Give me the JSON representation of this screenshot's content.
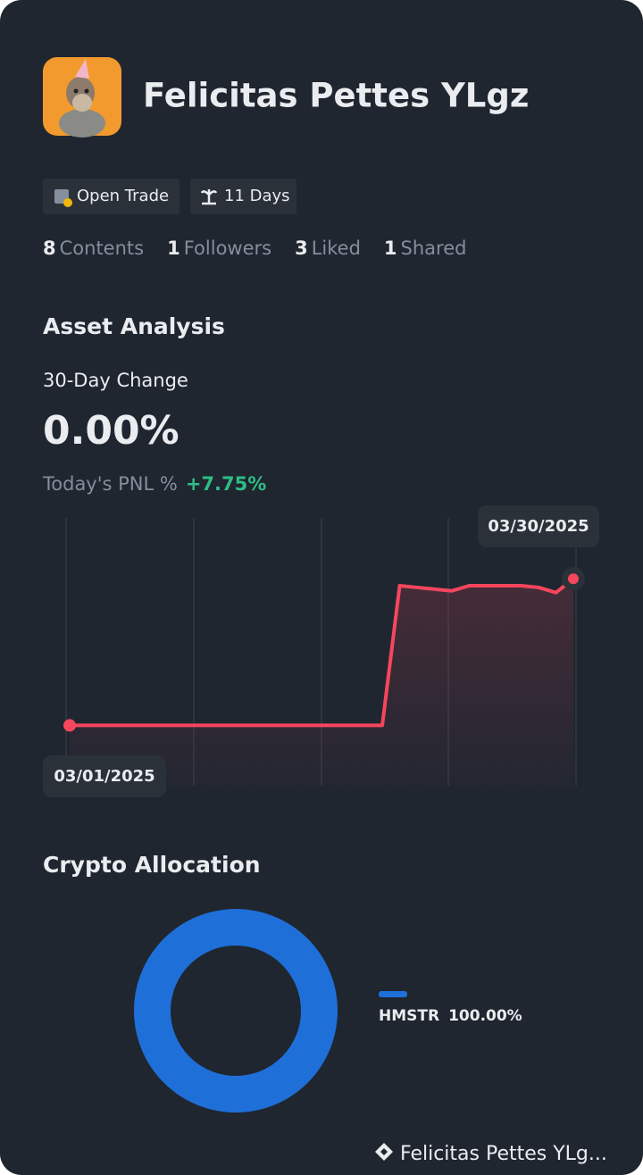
{
  "profile": {
    "name": "Felicitas Pettes YLgz",
    "badges": [
      "Open Trade",
      "11 Days"
    ],
    "stats": [
      {
        "count": 8,
        "label": "Contents"
      },
      {
        "count": 1,
        "label": "Followers"
      },
      {
        "count": 3,
        "label": "Liked"
      },
      {
        "count": 1,
        "label": "Shared"
      }
    ]
  },
  "asset_analysis": {
    "title": "Asset Analysis",
    "change_label": "30-Day Change",
    "change_value": "0.00%",
    "pnl_label": "Today's PNL %",
    "pnl_value": "+7.75%",
    "chart": {
      "type": "line",
      "start_label": "03/01/2025",
      "end_label": "03/30/2025",
      "color": "#f6465d",
      "values": [
        0,
        0,
        0,
        0,
        0,
        0,
        0,
        0,
        0,
        0,
        0,
        0,
        0,
        0,
        0,
        0,
        0,
        0,
        0,
        8.1,
        8.0,
        7.9,
        7.8,
        8.1,
        8.1,
        8.1,
        8.1,
        8.0,
        7.7,
        8.5
      ],
      "ylim": [
        -3.5,
        11
      ]
    }
  },
  "allocation": {
    "title": "Crypto Allocation",
    "type": "pie",
    "categories": [
      "HMSTR"
    ],
    "values": [
      100
    ],
    "value_labels": [
      "100.00%"
    ],
    "color": "#1f6fd9"
  },
  "footer": {
    "text": "Felicitas Pettes YLg..."
  }
}
